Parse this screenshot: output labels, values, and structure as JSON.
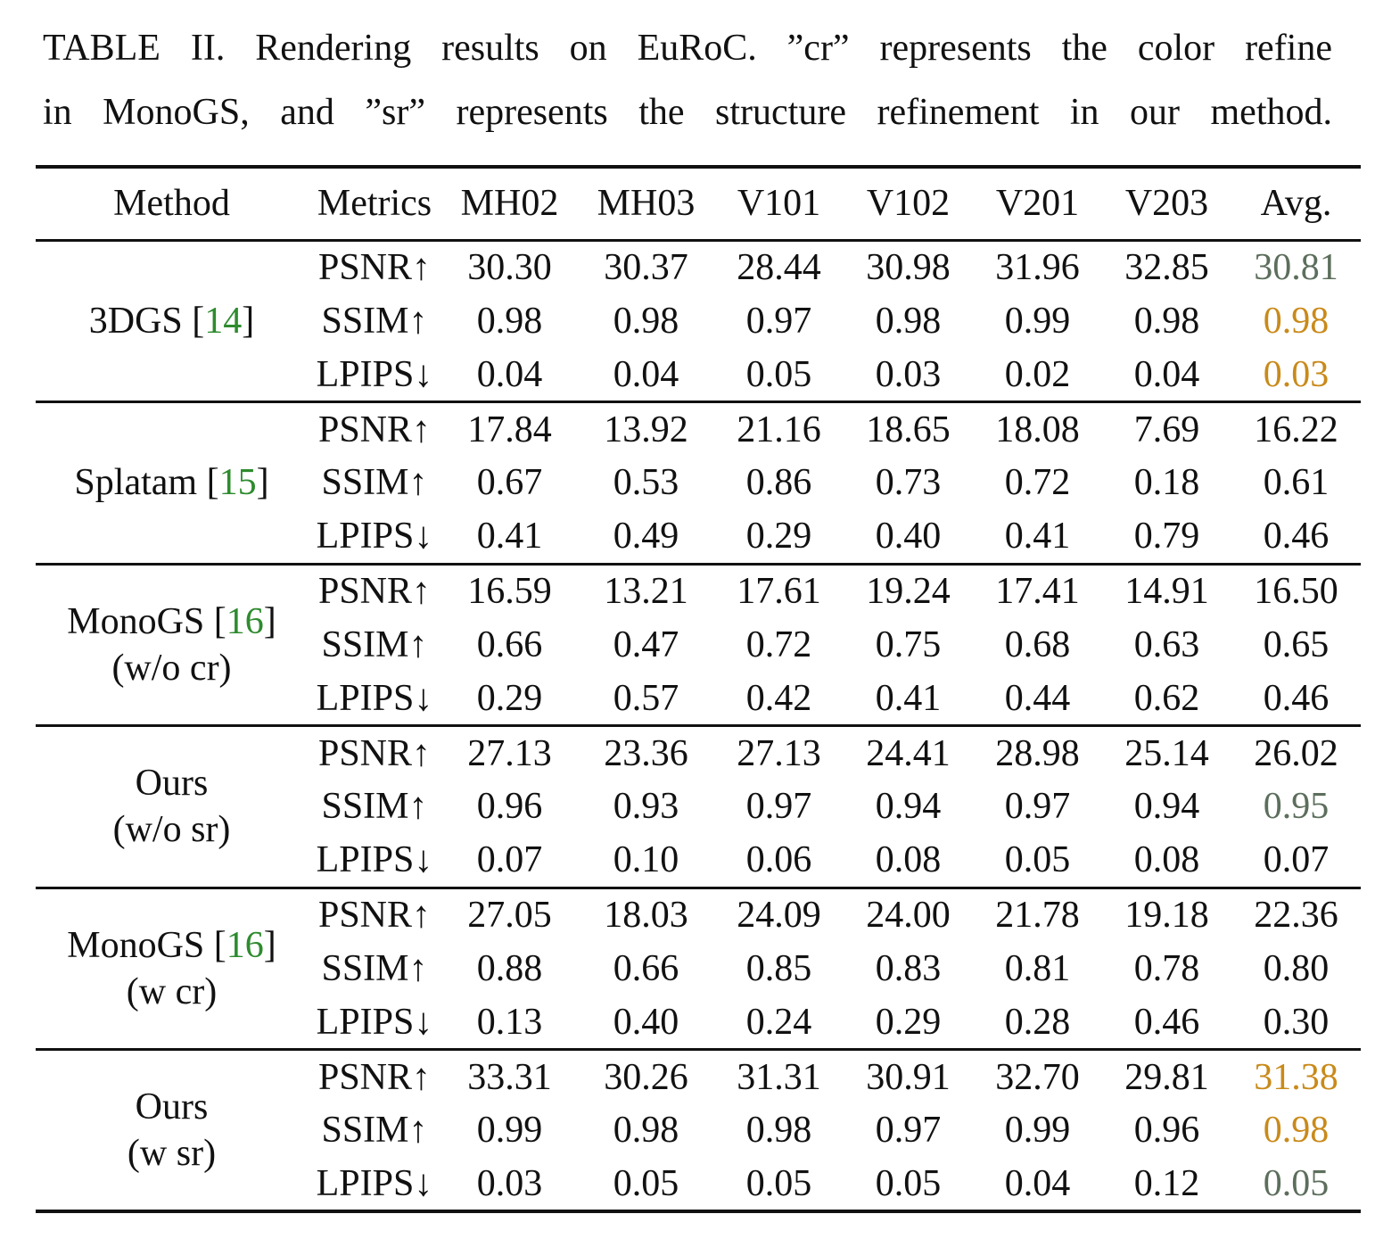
{
  "caption": {
    "line1": "TABLE II. Rendering results on EuRoC. ”cr” represents the color refine",
    "line2": "in MonoGS, and ”sr” represents the structure refinement in our method."
  },
  "header": [
    "Method",
    "Metrics",
    "MH02",
    "MH03",
    "V101",
    "V102",
    "V201",
    "V203",
    "Avg."
  ],
  "colors": {
    "citation": "#2e8b2e",
    "best_avg": "#c98a1a",
    "second_avg": "#5c6e5c"
  },
  "groups": [
    {
      "method": "3DGS [",
      "cite": "14",
      "close": "]",
      "method_line2": "",
      "rows": [
        {
          "metric": "PSNR↑",
          "values": [
            "30.30",
            "30.37",
            "28.44",
            "30.98",
            "31.96",
            "32.85",
            "30.81"
          ],
          "bold": [
            false,
            true,
            false,
            true,
            false,
            true,
            false
          ],
          "avg_color": "gray"
        },
        {
          "metric": "SSIM↑",
          "values": [
            "0.98",
            "0.98",
            "0.97",
            "0.98",
            "0.99",
            "0.98",
            "0.98"
          ],
          "bold": [
            false,
            true,
            false,
            true,
            true,
            true,
            false
          ],
          "avg_color": "orange"
        },
        {
          "metric": "LPIPS↓",
          "values": [
            "0.04",
            "0.04",
            "0.05",
            "0.03",
            "0.02",
            "0.04",
            "0.03"
          ],
          "bold": [
            false,
            true,
            true,
            true,
            true,
            true,
            false
          ],
          "avg_color": "orange"
        }
      ]
    },
    {
      "method": "Splatam [",
      "cite": "15",
      "close": "]",
      "method_line2": "",
      "rows": [
        {
          "metric": "PSNR↑",
          "values": [
            "17.84",
            "13.92",
            "21.16",
            "18.65",
            "18.08",
            "7.69",
            "16.22"
          ],
          "bold": [
            false,
            false,
            false,
            false,
            false,
            false,
            false
          ],
          "avg_color": "plain"
        },
        {
          "metric": "SSIM↑",
          "values": [
            "0.67",
            "0.53",
            "0.86",
            "0.73",
            "0.72",
            "0.18",
            "0.61"
          ],
          "bold": [
            false,
            false,
            false,
            false,
            false,
            false,
            false
          ],
          "avg_color": "plain"
        },
        {
          "metric": "LPIPS↓",
          "values": [
            "0.41",
            "0.49",
            "0.29",
            "0.40",
            "0.41",
            "0.79",
            "0.46"
          ],
          "bold": [
            false,
            false,
            false,
            false,
            false,
            false,
            false
          ],
          "avg_color": "plain"
        }
      ]
    },
    {
      "method": "MonoGS [",
      "cite": "16",
      "close": "]",
      "method_line2": "(w/o cr)",
      "rows": [
        {
          "metric": "PSNR↑",
          "values": [
            "16.59",
            "13.21",
            "17.61",
            "19.24",
            "17.41",
            "14.91",
            "16.50"
          ],
          "bold": [
            false,
            false,
            false,
            false,
            false,
            false,
            false
          ],
          "avg_color": "plain"
        },
        {
          "metric": "SSIM↑",
          "values": [
            "0.66",
            "0.47",
            "0.72",
            "0.75",
            "0.68",
            "0.63",
            "0.65"
          ],
          "bold": [
            false,
            false,
            false,
            false,
            false,
            false,
            false
          ],
          "avg_color": "plain"
        },
        {
          "metric": "LPIPS↓",
          "values": [
            "0.29",
            "0.57",
            "0.42",
            "0.41",
            "0.44",
            "0.62",
            "0.46"
          ],
          "bold": [
            false,
            false,
            false,
            false,
            false,
            false,
            false
          ],
          "avg_color": "plain"
        }
      ]
    },
    {
      "method": "Ours",
      "cite": "",
      "close": "",
      "method_line2": "(w/o sr)",
      "rows": [
        {
          "metric": "PSNR↑",
          "values": [
            "27.13",
            "23.36",
            "27.13",
            "24.41",
            "28.98",
            "25.14",
            "26.02"
          ],
          "bold": [
            false,
            false,
            false,
            false,
            false,
            false,
            false
          ],
          "avg_color": "plain"
        },
        {
          "metric": "SSIM↑",
          "values": [
            "0.96",
            "0.93",
            "0.97",
            "0.94",
            "0.97",
            "0.94",
            "0.95"
          ],
          "bold": [
            false,
            false,
            false,
            false,
            false,
            false,
            false
          ],
          "avg_color": "gray"
        },
        {
          "metric": "LPIPS↓",
          "values": [
            "0.07",
            "0.10",
            "0.06",
            "0.08",
            "0.05",
            "0.08",
            "0.07"
          ],
          "bold": [
            false,
            false,
            false,
            false,
            false,
            false,
            false
          ],
          "avg_color": "plain"
        }
      ]
    },
    {
      "method": "MonoGS [",
      "cite": "16",
      "close": "]",
      "method_line2": "(w cr)",
      "rows": [
        {
          "metric": "PSNR↑",
          "values": [
            "27.05",
            "18.03",
            "24.09",
            "24.00",
            "21.78",
            "19.18",
            "22.36"
          ],
          "bold": [
            false,
            false,
            false,
            false,
            false,
            false,
            false
          ],
          "avg_color": "plain"
        },
        {
          "metric": "SSIM↑",
          "values": [
            "0.88",
            "0.66",
            "0.85",
            "0.83",
            "0.81",
            "0.78",
            "0.80"
          ],
          "bold": [
            false,
            false,
            false,
            false,
            false,
            false,
            false
          ],
          "avg_color": "plain"
        },
        {
          "metric": "LPIPS↓",
          "values": [
            "0.13",
            "0.40",
            "0.24",
            "0.29",
            "0.28",
            "0.46",
            "0.30"
          ],
          "bold": [
            false,
            false,
            false,
            false,
            false,
            false,
            false
          ],
          "avg_color": "plain"
        }
      ]
    },
    {
      "method": "Ours",
      "cite": "",
      "close": "",
      "method_line2": "(w sr)",
      "rows": [
        {
          "metric": "PSNR↑",
          "values": [
            "33.31",
            "30.26",
            "31.31",
            "30.91",
            "32.70",
            "29.81",
            "31.38"
          ],
          "bold": [
            true,
            false,
            true,
            false,
            true,
            false,
            false
          ],
          "avg_color": "orange"
        },
        {
          "metric": "SSIM↑",
          "values": [
            "0.99",
            "0.98",
            "0.98",
            "0.97",
            "0.99",
            "0.96",
            "0.98"
          ],
          "bold": [
            true,
            true,
            true,
            false,
            true,
            false,
            false
          ],
          "avg_color": "orange"
        },
        {
          "metric": "LPIPS↓",
          "values": [
            "0.03",
            "0.05",
            "0.05",
            "0.05",
            "0.04",
            "0.12",
            "0.05"
          ],
          "bold": [
            true,
            false,
            true,
            false,
            false,
            false,
            false
          ],
          "avg_color": "gray"
        }
      ]
    }
  ]
}
